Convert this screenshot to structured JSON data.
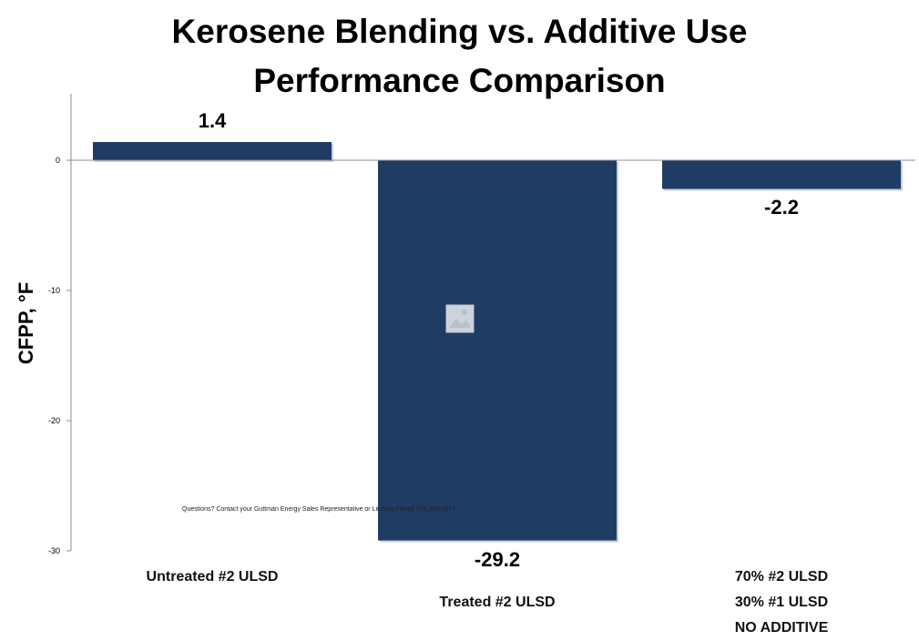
{
  "chart_data": {
    "type": "bar",
    "title": [
      "Kerosene Blending vs. Additive Use",
      "Performance Comparison"
    ],
    "ylabel": "CFPP, °F",
    "xlabel": "",
    "categories": [
      [
        "Untreated #2 ULSD"
      ],
      [
        "Treated #2 ULSD"
      ],
      [
        "70% #2 ULSD",
        "30% #1 ULSD",
        "NO ADDITIVE"
      ]
    ],
    "values": [
      1.4,
      -29.2,
      -2.2
    ],
    "data_labels": [
      "1.4",
      "-29.2",
      "-2.2"
    ],
    "ylim": [
      -30,
      5
    ],
    "yticks": [
      "0",
      "-10",
      "-20",
      "-30"
    ],
    "grid": false,
    "legend": "none",
    "bar_color": "#1f3c65"
  },
  "footnote": "Questions? Contact your Guttman Energy Sales Representative or Lindsay Farrell 724-268-3217",
  "icon": "image-placeholder-icon"
}
